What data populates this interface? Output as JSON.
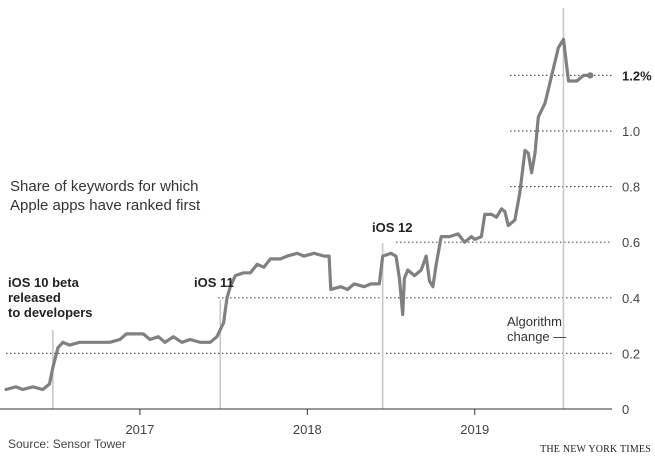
{
  "chart_data": {
    "type": "line",
    "title": "Share of keywords for which Apple apps have ranked first",
    "xlabel": "",
    "ylabel": "",
    "yunit": "%",
    "ylim": [
      0,
      1.3
    ],
    "yticks": [
      {
        "value": 0,
        "label": "0"
      },
      {
        "value": 0.2,
        "label": "0.2"
      },
      {
        "value": 0.4,
        "label": "0.4"
      },
      {
        "value": 0.6,
        "label": "0.6"
      },
      {
        "value": 0.8,
        "label": "0.8"
      },
      {
        "value": 1.0,
        "label": "1.0"
      },
      {
        "value": 1.2,
        "label": "1.2%"
      }
    ],
    "xticks": [
      {
        "value": 2017.0,
        "label": "2017"
      },
      {
        "value": 2018.0,
        "label": "2018"
      },
      {
        "value": 2019.0,
        "label": "2019"
      }
    ],
    "grid": "horizontal dotted",
    "line_color": "#808080",
    "series": [
      {
        "name": "",
        "points": [
          [
            2016.2,
            0.07
          ],
          [
            2016.26,
            0.08
          ],
          [
            2016.3,
            0.07
          ],
          [
            2016.36,
            0.08
          ],
          [
            2016.42,
            0.07
          ],
          [
            2016.46,
            0.09
          ],
          [
            2016.48,
            0.15
          ],
          [
            2016.51,
            0.22
          ],
          [
            2016.54,
            0.24
          ],
          [
            2016.58,
            0.23
          ],
          [
            2016.64,
            0.24
          ],
          [
            2016.72,
            0.24
          ],
          [
            2016.82,
            0.24
          ],
          [
            2016.88,
            0.25
          ],
          [
            2016.92,
            0.27
          ],
          [
            2017.02,
            0.27
          ],
          [
            2017.06,
            0.25
          ],
          [
            2017.11,
            0.26
          ],
          [
            2017.15,
            0.24
          ],
          [
            2017.2,
            0.26
          ],
          [
            2017.25,
            0.24
          ],
          [
            2017.3,
            0.25
          ],
          [
            2017.36,
            0.24
          ],
          [
            2017.42,
            0.24
          ],
          [
            2017.46,
            0.26
          ],
          [
            2017.5,
            0.31
          ],
          [
            2017.52,
            0.4
          ],
          [
            2017.54,
            0.44
          ],
          [
            2017.57,
            0.48
          ],
          [
            2017.62,
            0.49
          ],
          [
            2017.66,
            0.49
          ],
          [
            2017.7,
            0.52
          ],
          [
            2017.74,
            0.51
          ],
          [
            2017.78,
            0.54
          ],
          [
            2017.84,
            0.54
          ],
          [
            2017.88,
            0.55
          ],
          [
            2017.94,
            0.56
          ],
          [
            2017.98,
            0.55
          ],
          [
            2018.04,
            0.56
          ],
          [
            2018.1,
            0.55
          ],
          [
            2018.13,
            0.55
          ],
          [
            2018.14,
            0.43
          ],
          [
            2018.2,
            0.44
          ],
          [
            2018.24,
            0.43
          ],
          [
            2018.28,
            0.45
          ],
          [
            2018.34,
            0.44
          ],
          [
            2018.38,
            0.45
          ],
          [
            2018.43,
            0.45
          ],
          [
            2018.45,
            0.55
          ],
          [
            2018.5,
            0.56
          ],
          [
            2018.53,
            0.55
          ],
          [
            2018.55,
            0.47
          ],
          [
            2018.57,
            0.34
          ],
          [
            2018.58,
            0.47
          ],
          [
            2018.6,
            0.5
          ],
          [
            2018.64,
            0.48
          ],
          [
            2018.68,
            0.5
          ],
          [
            2018.71,
            0.55
          ],
          [
            2018.73,
            0.46
          ],
          [
            2018.75,
            0.44
          ],
          [
            2018.77,
            0.52
          ],
          [
            2018.8,
            0.62
          ],
          [
            2018.85,
            0.62
          ],
          [
            2018.9,
            0.63
          ],
          [
            2018.94,
            0.6
          ],
          [
            2018.98,
            0.62
          ],
          [
            2019.0,
            0.61
          ],
          [
            2019.04,
            0.62
          ],
          [
            2019.06,
            0.7
          ],
          [
            2019.1,
            0.7
          ],
          [
            2019.13,
            0.69
          ],
          [
            2019.16,
            0.72
          ],
          [
            2019.18,
            0.71
          ],
          [
            2019.2,
            0.66
          ],
          [
            2019.24,
            0.68
          ],
          [
            2019.27,
            0.78
          ],
          [
            2019.3,
            0.93
          ],
          [
            2019.32,
            0.92
          ],
          [
            2019.34,
            0.85
          ],
          [
            2019.36,
            0.92
          ],
          [
            2019.38,
            1.05
          ],
          [
            2019.42,
            1.1
          ],
          [
            2019.46,
            1.2
          ],
          [
            2019.5,
            1.3
          ],
          [
            2019.53,
            1.33
          ],
          [
            2019.56,
            1.18
          ],
          [
            2019.61,
            1.18
          ],
          [
            2019.65,
            1.2
          ],
          [
            2019.69,
            1.2
          ]
        ]
      }
    ],
    "annotations": [
      {
        "x": 2016.48,
        "lines": [
          "iOS 10 beta",
          "released",
          "to developers"
        ],
        "style": "bold"
      },
      {
        "x": 2017.48,
        "lines": [
          "iOS 11"
        ],
        "style": "bold"
      },
      {
        "x": 2018.45,
        "lines": [
          "iOS 12"
        ],
        "style": "bold"
      },
      {
        "x": 2019.53,
        "lines": [
          "Algorithm",
          "change —"
        ],
        "style": "plain"
      }
    ],
    "source": "Source: Sensor Tower",
    "credit": "THE NEW YORK TIMES"
  }
}
